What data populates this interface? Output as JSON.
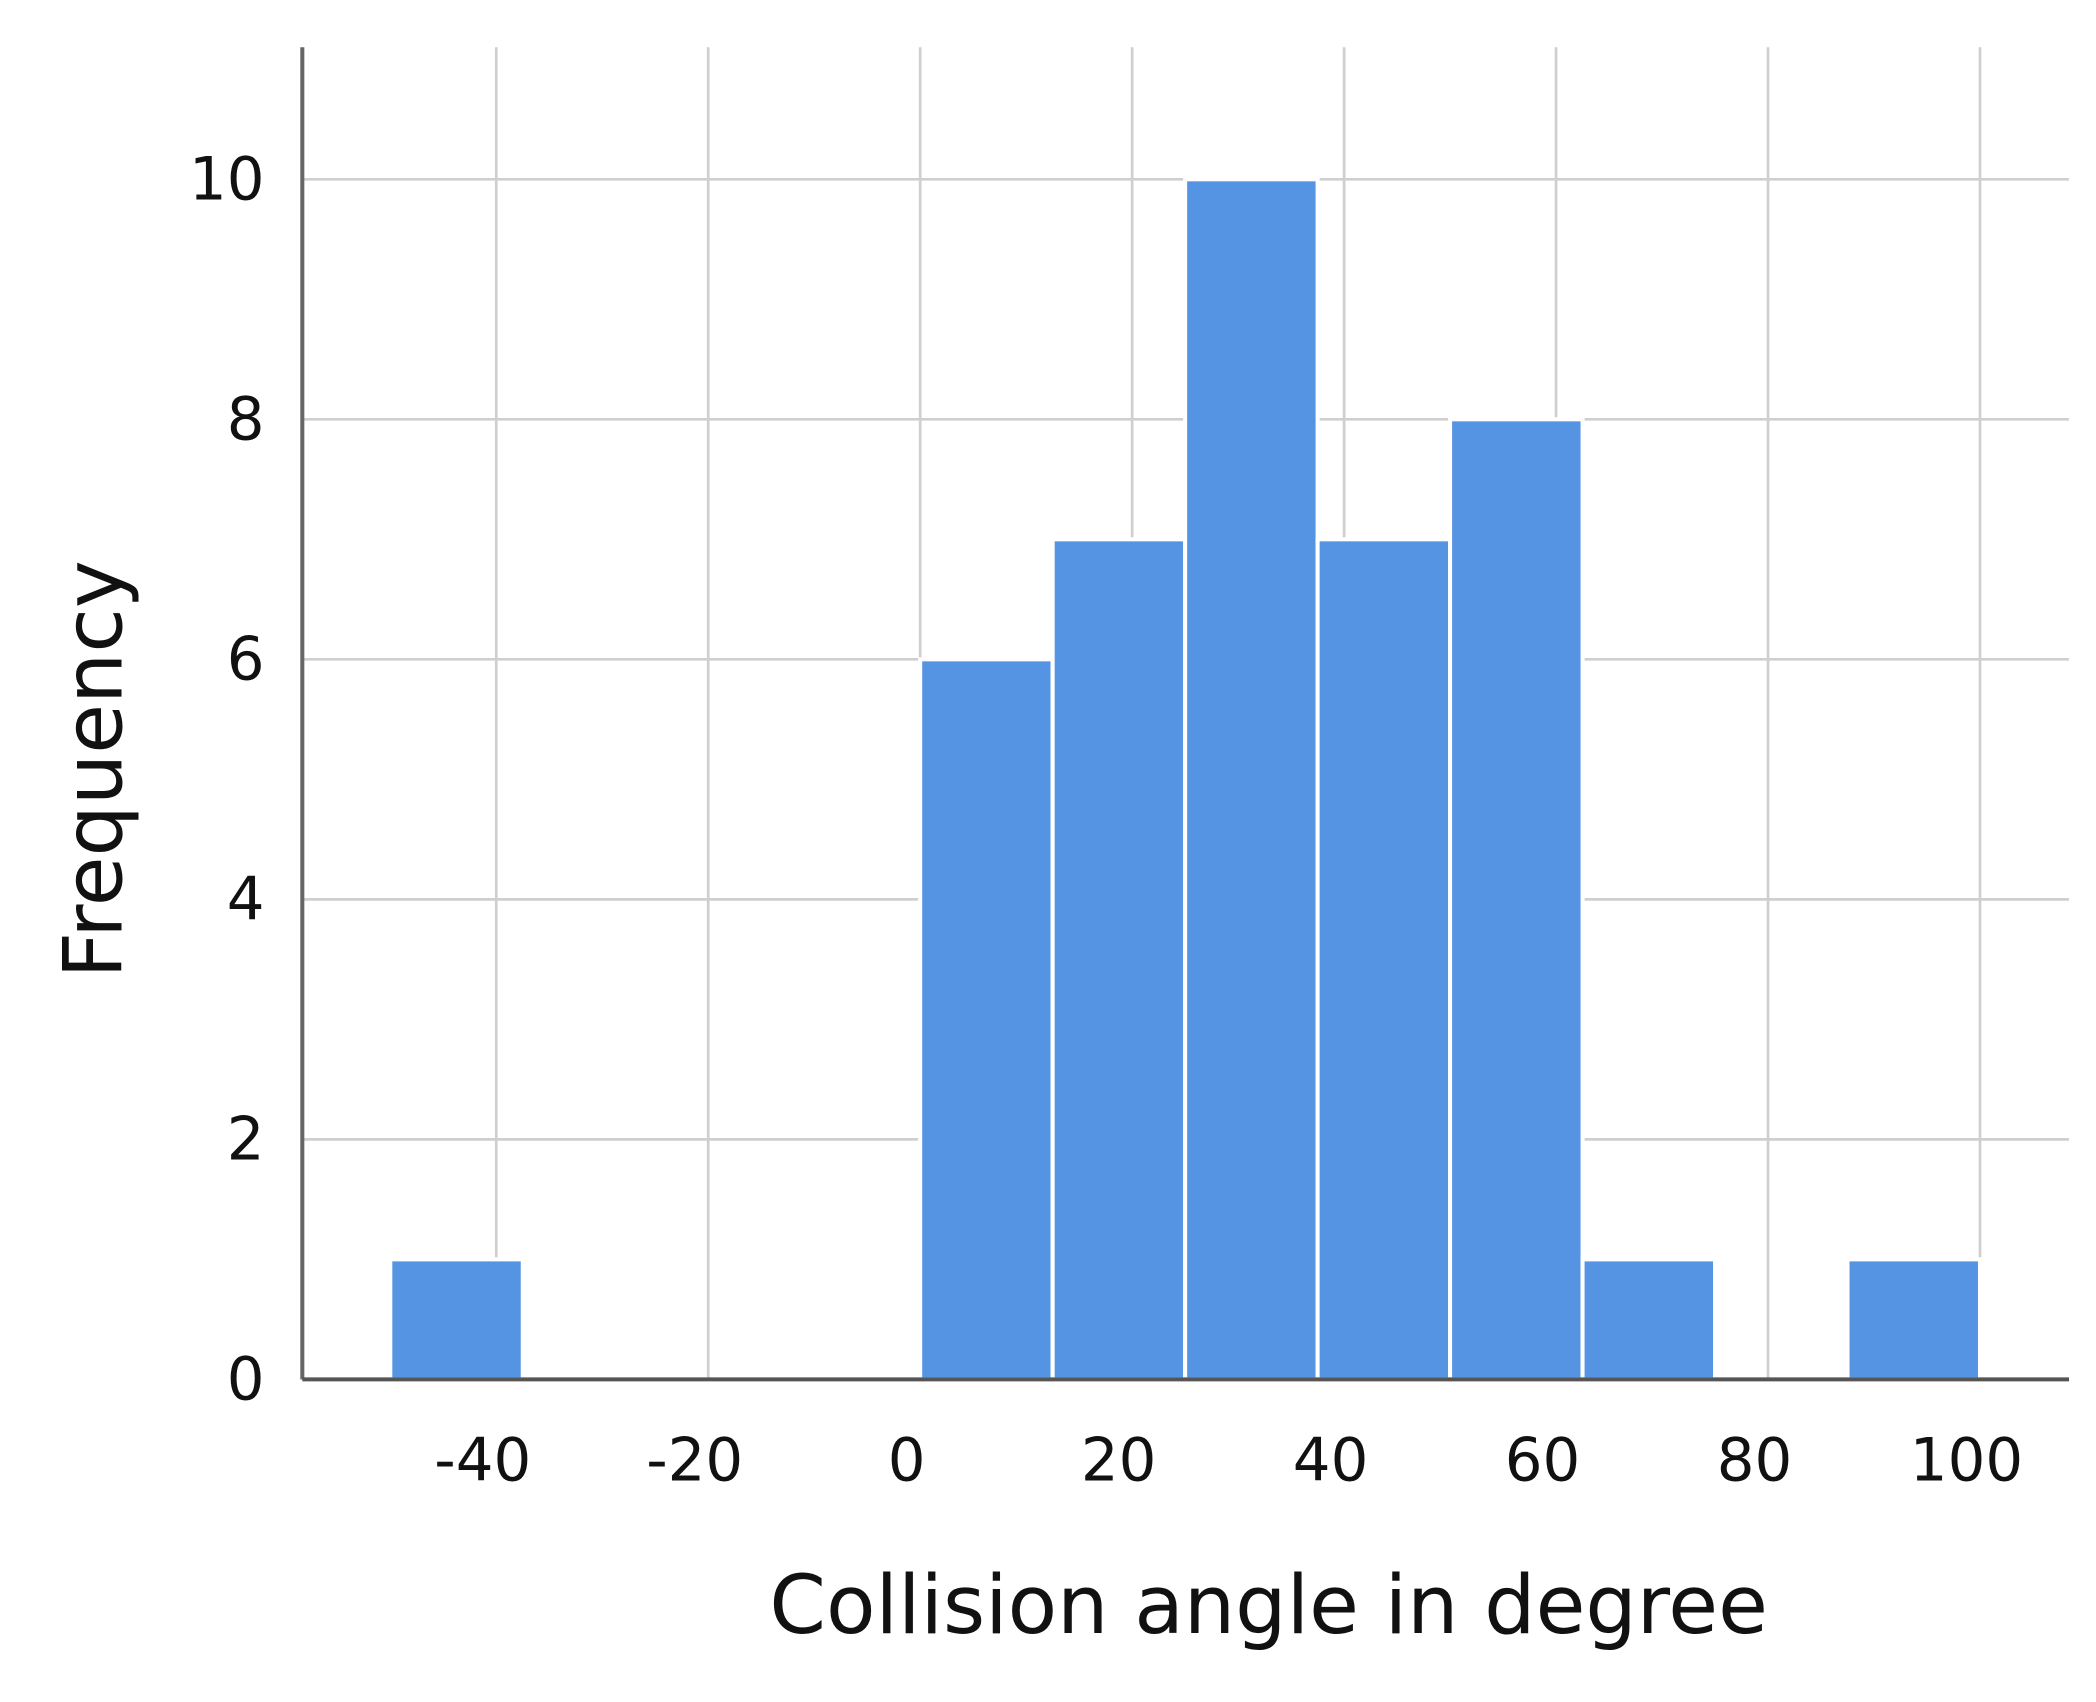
{
  "chart_data": {
    "type": "histogram",
    "x_label": "Collision angle in degree",
    "y_label": "Frequency",
    "bins": [
      -50,
      -37.5,
      -25,
      -12.5,
      0,
      12.5,
      25,
      37.5,
      50,
      62.5,
      75,
      87.5,
      100
    ],
    "values": [
      1,
      0,
      0,
      0,
      6,
      7,
      10,
      7,
      8,
      1,
      0,
      1
    ],
    "color": "#5593e3",
    "xlim": [
      -58.3,
      108.4
    ],
    "xticks": [
      -40,
      -20,
      0,
      20,
      40,
      60,
      80,
      100
    ],
    "ylim": [
      0,
      11.1
    ],
    "yticks": [
      0,
      2,
      4,
      6,
      8,
      10
    ],
    "grid": true
  }
}
